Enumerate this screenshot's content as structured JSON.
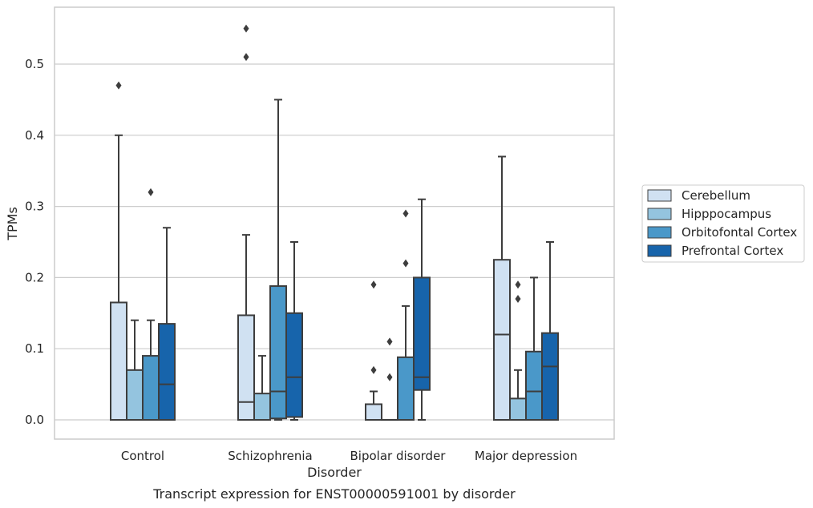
{
  "chart_data": {
    "type": "box",
    "xlabel": "Disorder",
    "ylabel": "TPMs",
    "caption": "Transcript expression for ENST00000591001 by disorder",
    "ylim": [
      -0.027,
      0.583
    ],
    "yticks": [
      0.0,
      0.1,
      0.2,
      0.3,
      0.4,
      0.5
    ],
    "ytick_labels": [
      "0.0",
      "0.1",
      "0.2",
      "0.3",
      "0.4",
      "0.5"
    ],
    "grid": "horizontal",
    "legend_position": "right",
    "categories": [
      "Control",
      "Schizophrenia",
      "Bipolar disorder",
      "Major depression"
    ],
    "series": [
      {
        "name": "Cerebellum",
        "color": "#d0e1f2",
        "boxes": [
          {
            "q1": 0.0,
            "median": 0.0,
            "q3": 0.165,
            "whisker_low": 0.0,
            "whisker_high": 0.4,
            "outliers": [
              0.47
            ]
          },
          {
            "q1": 0.0,
            "median": 0.025,
            "q3": 0.147,
            "whisker_low": 0.0,
            "whisker_high": 0.26,
            "outliers": [
              0.51,
              0.55
            ]
          },
          {
            "q1": 0.0,
            "median": 0.0,
            "q3": 0.022,
            "whisker_low": 0.0,
            "whisker_high": 0.04,
            "outliers": [
              0.07,
              0.19
            ]
          },
          {
            "q1": 0.0,
            "median": 0.12,
            "q3": 0.225,
            "whisker_low": 0.0,
            "whisker_high": 0.37,
            "outliers": []
          }
        ]
      },
      {
        "name": "Hipppocampus",
        "color": "#94c4df",
        "boxes": [
          {
            "q1": 0.0,
            "median": 0.0,
            "q3": 0.07,
            "whisker_low": 0.0,
            "whisker_high": 0.14,
            "outliers": []
          },
          {
            "q1": 0.0,
            "median": 0.0,
            "q3": 0.037,
            "whisker_low": 0.0,
            "whisker_high": 0.09,
            "outliers": []
          },
          {
            "q1": 0.0,
            "median": 0.0,
            "q3": 0.0,
            "whisker_low": 0.0,
            "whisker_high": 0.0,
            "outliers": [
              0.06,
              0.11
            ]
          },
          {
            "q1": 0.0,
            "median": 0.0,
            "q3": 0.03,
            "whisker_low": 0.0,
            "whisker_high": 0.07,
            "outliers": [
              0.17,
              0.19
            ]
          }
        ]
      },
      {
        "name": "Orbitofontal Cortex",
        "color": "#4a98c9",
        "boxes": [
          {
            "q1": 0.0,
            "median": 0.0,
            "q3": 0.09,
            "whisker_low": 0.0,
            "whisker_high": 0.14,
            "outliers": [
              0.32
            ]
          },
          {
            "q1": 0.002,
            "median": 0.04,
            "q3": 0.188,
            "whisker_low": 0.0,
            "whisker_high": 0.45,
            "outliers": []
          },
          {
            "q1": 0.0,
            "median": 0.0,
            "q3": 0.088,
            "whisker_low": 0.0,
            "whisker_high": 0.16,
            "outliers": [
              0.22,
              0.29
            ]
          },
          {
            "q1": 0.0,
            "median": 0.04,
            "q3": 0.096,
            "whisker_low": 0.0,
            "whisker_high": 0.2,
            "outliers": []
          }
        ]
      },
      {
        "name": "Prefrontal Cortex",
        "color": "#1764ab",
        "boxes": [
          {
            "q1": 0.0,
            "median": 0.05,
            "q3": 0.135,
            "whisker_low": 0.0,
            "whisker_high": 0.27,
            "outliers": []
          },
          {
            "q1": 0.004,
            "median": 0.06,
            "q3": 0.15,
            "whisker_low": 0.0,
            "whisker_high": 0.25,
            "outliers": []
          },
          {
            "q1": 0.042,
            "median": 0.06,
            "q3": 0.2,
            "whisker_low": 0.0,
            "whisker_high": 0.31,
            "outliers": []
          },
          {
            "q1": 0.0,
            "median": 0.075,
            "q3": 0.122,
            "whisker_low": 0.0,
            "whisker_high": 0.25,
            "outliers": []
          }
        ]
      }
    ]
  }
}
